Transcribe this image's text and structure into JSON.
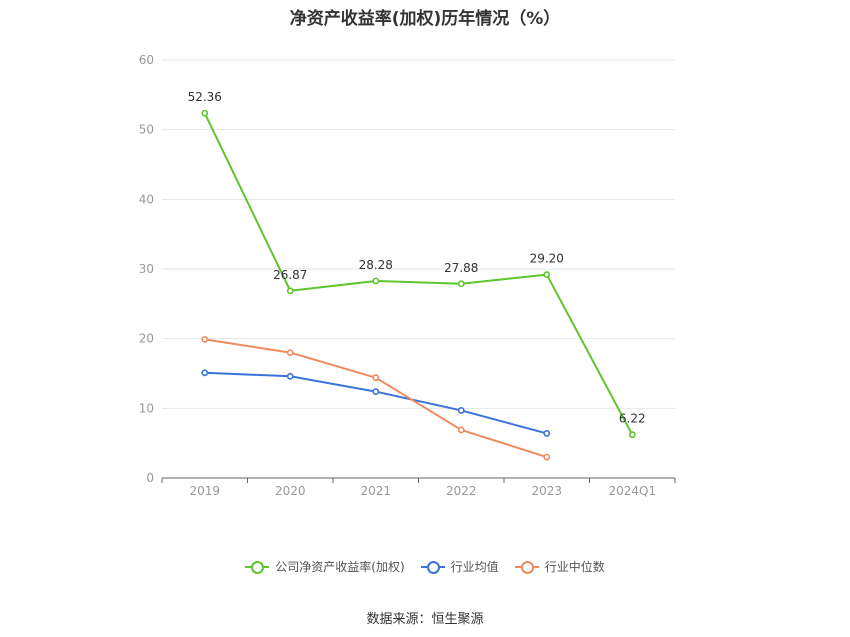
{
  "title": "净资产收益率(加权)历年情况（%）",
  "source": "数据来源：恒生聚源",
  "chart_data": {
    "type": "line",
    "title": "净资产收益率(加权)历年情况（%）",
    "categories": [
      "2019",
      "2020",
      "2021",
      "2022",
      "2023",
      "2024Q1"
    ],
    "y_ticks": [
      "0",
      "10",
      "20",
      "30",
      "40",
      "50",
      "60"
    ],
    "ylim": [
      0,
      60
    ],
    "grid": true,
    "legend_position": "bottom",
    "series": [
      {
        "name": "公司净资产收益率(加权)",
        "color": "#5ec52c",
        "values": [
          52.36,
          26.87,
          28.28,
          27.88,
          29.2,
          6.22
        ],
        "labels": [
          "52.36",
          "26.87",
          "28.28",
          "27.88",
          "29.20",
          "6.22"
        ]
      },
      {
        "name": "行业均值",
        "color": "#3a74d8",
        "values": [
          15.1,
          14.6,
          12.4,
          9.7,
          6.4,
          null
        ]
      },
      {
        "name": "行业中位数",
        "color": "#f08a5d",
        "values": [
          19.9,
          18.0,
          14.4,
          6.9,
          3.0,
          null
        ]
      }
    ]
  }
}
